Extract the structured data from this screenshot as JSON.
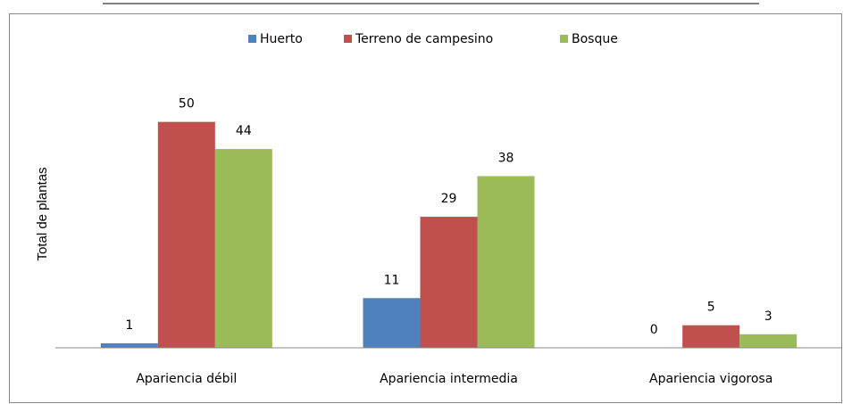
{
  "chart_data": {
    "type": "bar",
    "y_label": "Total de plantas",
    "categories": [
      "Apariencia débil",
      "Apariencia intermedia",
      "Apariencia vigorosa"
    ],
    "series": [
      {
        "name": "Huerto",
        "color": "#4f81bd",
        "values": [
          1,
          11,
          0
        ]
      },
      {
        "name": "Terreno de campesino",
        "color": "#c0504d",
        "values": [
          50,
          29,
          5
        ]
      },
      {
        "name": "Bosque",
        "color": "#9bbb59",
        "values": [
          44,
          38,
          3
        ]
      }
    ],
    "ylim": [
      0,
      60
    ],
    "grid": false,
    "legend": "top"
  }
}
